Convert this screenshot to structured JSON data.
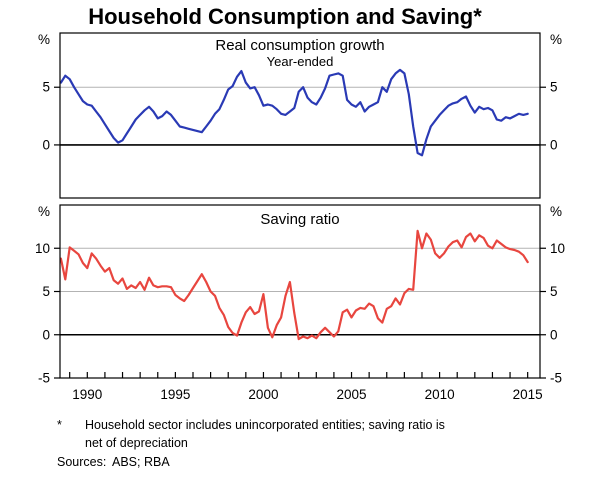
{
  "title": "Household Consumption and Saving*",
  "colors": {
    "consumption_line": "#2a3ab5",
    "saving_line": "#e8463f",
    "gridline": "#b3b3b3",
    "axis": "#000000"
  },
  "x_axis": {
    "range": [
      1988.45,
      2015.7
    ],
    "minor_tick_years": {
      "start": 1989,
      "end": 2015,
      "step": 1
    },
    "labels": [
      1990,
      1995,
      2000,
      2005,
      2010,
      2015
    ]
  },
  "footnote": {
    "marker": "*",
    "line1": "Household sector includes unincorporated entities; saving ratio is",
    "line2": "net of depreciation",
    "sources_label": "Sources:",
    "sources": "ABS; RBA"
  },
  "chart_data": [
    {
      "type": "line",
      "panel": "top",
      "title": "Real consumption growth",
      "subtitle": "Year-ended",
      "unit": "%",
      "color": "#2a3ab5",
      "ylim": [
        -4.6,
        9.7
      ],
      "gridlines": [
        5
      ],
      "zero_line": 0,
      "yticks": [
        {
          "v": 5,
          "label": "5"
        },
        {
          "v": 0,
          "label": "0"
        }
      ],
      "x_start": 1988.5,
      "x_step": 0.25,
      "values": [
        5.4,
        6.0,
        5.7,
        5.0,
        4.4,
        3.8,
        3.5,
        3.4,
        2.9,
        2.4,
        1.8,
        1.2,
        0.6,
        0.2,
        0.4,
        1.0,
        1.6,
        2.2,
        2.6,
        3.0,
        3.3,
        2.9,
        2.3,
        2.5,
        2.9,
        2.6,
        2.1,
        1.6,
        1.5,
        1.4,
        1.3,
        1.2,
        1.1,
        1.6,
        2.1,
        2.7,
        3.1,
        3.9,
        4.8,
        5.1,
        5.9,
        6.4,
        5.4,
        4.9,
        5.0,
        4.3,
        3.4,
        3.5,
        3.4,
        3.1,
        2.7,
        2.6,
        2.9,
        3.2,
        4.6,
        5.0,
        4.1,
        3.7,
        3.5,
        4.1,
        4.9,
        6.0,
        6.1,
        6.2,
        6.0,
        3.9,
        3.5,
        3.3,
        3.7,
        2.9,
        3.3,
        3.5,
        3.7,
        5.0,
        4.6,
        5.7,
        6.2,
        6.5,
        6.2,
        4.4,
        1.6,
        -0.7,
        -0.9,
        0.5,
        1.6,
        2.1,
        2.6,
        3.0,
        3.4,
        3.6,
        3.7,
        4.0,
        4.2,
        3.4,
        2.8,
        3.3,
        3.1,
        3.2,
        3.0,
        2.2,
        2.1,
        2.4,
        2.3,
        2.5,
        2.7,
        2.6,
        2.7
      ]
    },
    {
      "type": "line",
      "panel": "bottom",
      "title": "Saving ratio",
      "subtitle": "",
      "unit": "%",
      "color": "#e8463f",
      "ylim": [
        -5,
        15
      ],
      "gridlines": [
        10,
        5
      ],
      "zero_line": 0,
      "yticks": [
        {
          "v": 10,
          "label": "10"
        },
        {
          "v": 5,
          "label": "5"
        },
        {
          "v": 0,
          "label": "0"
        },
        {
          "v": -5,
          "label": "-5"
        }
      ],
      "x_start": 1988.5,
      "x_step": 0.25,
      "values": [
        8.8,
        6.4,
        10.1,
        9.7,
        9.3,
        8.3,
        7.7,
        9.4,
        8.8,
        8.0,
        7.3,
        7.7,
        6.3,
        5.9,
        6.5,
        5.3,
        5.7,
        5.4,
        6.1,
        5.2,
        6.6,
        5.7,
        5.5,
        5.6,
        5.6,
        5.5,
        4.6,
        4.2,
        3.9,
        4.6,
        5.4,
        6.2,
        7.0,
        6.1,
        5.0,
        4.5,
        3.1,
        2.3,
        0.9,
        0.2,
        -0.1,
        1.4,
        2.6,
        3.2,
        2.4,
        2.7,
        4.7,
        0.8,
        -0.3,
        1.1,
        2.0,
        4.5,
        6.1,
        2.5,
        -0.5,
        -0.2,
        -0.4,
        -0.1,
        -0.4,
        0.3,
        0.8,
        0.3,
        -0.2,
        0.4,
        2.6,
        2.9,
        2.0,
        2.8,
        3.1,
        3.0,
        3.6,
        3.3,
        1.9,
        1.4,
        3.0,
        3.3,
        4.2,
        3.5,
        4.8,
        5.3,
        5.2,
        12.0,
        10.0,
        11.7,
        11.0,
        9.4,
        8.9,
        9.4,
        10.2,
        10.7,
        10.9,
        10.1,
        11.3,
        11.7,
        10.8,
        11.5,
        11.2,
        10.3,
        10.0,
        10.9,
        10.5,
        10.1,
        9.9,
        9.8,
        9.6,
        9.2,
        8.4
      ]
    }
  ]
}
